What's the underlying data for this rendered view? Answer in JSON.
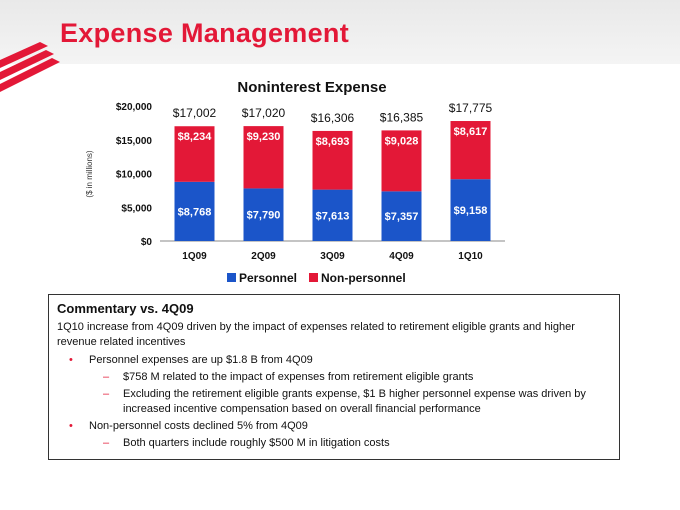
{
  "page": {
    "title": "Expense Management"
  },
  "chart_data": {
    "type": "bar",
    "stacked": true,
    "title": "Noninterest Expense",
    "ylabel": "($ in millions)",
    "categories": [
      "1Q09",
      "2Q09",
      "3Q09",
      "4Q09",
      "1Q10"
    ],
    "ylim": [
      0,
      20000
    ],
    "yticks": [
      "$0",
      "$5,000",
      "$10,000",
      "$15,000",
      "$20,000"
    ],
    "series": [
      {
        "name": "Personnel",
        "values": [
          8768,
          7790,
          7613,
          7357,
          9158
        ],
        "labels": [
          "$8,768",
          "$7,790",
          "$7,613",
          "$7,357",
          "$9,158"
        ],
        "color": "#1b55c9"
      },
      {
        "name": "Non-personnel",
        "values": [
          8234,
          9230,
          8693,
          9028,
          8617
        ],
        "labels": [
          "$8,234",
          "$9,230",
          "$8,693",
          "$9,028",
          "$8,617"
        ],
        "color": "#e31837"
      }
    ],
    "totals": [
      "$17,002",
      "$17,020",
      "$16,306",
      "$16,385",
      "$17,775"
    ],
    "legend": "bottom",
    "grid": false
  },
  "commentary": {
    "title": "Commentary vs. 4Q09",
    "intro": "1Q10 increase from 4Q09 driven by the impact of expenses related to retirement eligible grants and higher revenue related incentives",
    "bullet1": "Personnel expenses are up $1.8 B from 4Q09",
    "bullet1_sub1": "$758 M related to the impact of expenses from retirement eligible grants",
    "bullet1_sub2": "Excluding the retirement eligible grants expense, $1 B higher personnel expense was driven by increased incentive compensation based on overall financial performance",
    "bullet2": "Non-personnel costs declined 5% from 4Q09",
    "bullet2_sub1": "Both quarters include roughly $500 M in litigation costs",
    "bullet_char": "•",
    "dash_char": "–"
  },
  "colors": {
    "accent": "#e31837",
    "personnel": "#1b55c9",
    "non_personnel": "#e31837"
  }
}
